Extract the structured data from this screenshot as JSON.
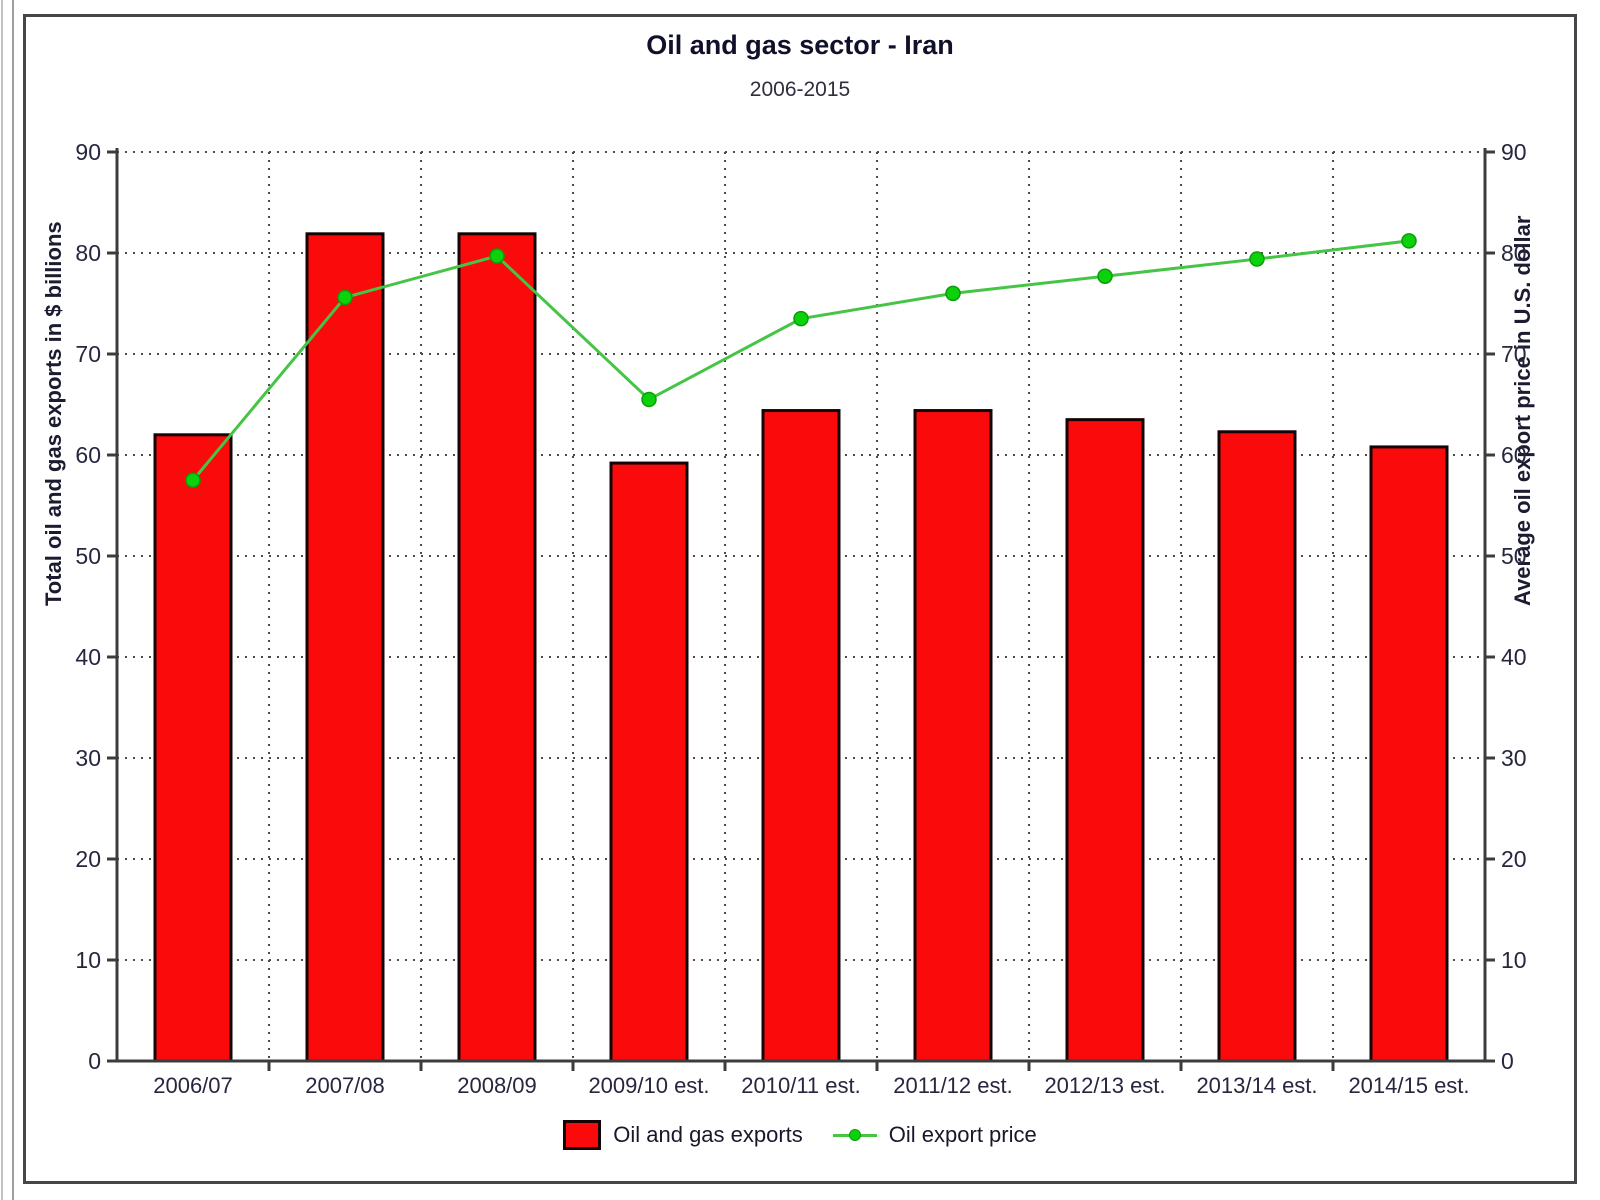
{
  "title": "Oil and gas sector - Iran",
  "subtitle": "2006-2015",
  "left_axis_label": "Total oil and gas exports in $ billions",
  "right_axis_label": "Average oil export price in U.S. dollar",
  "legend": {
    "bar_label": "Oil and gas exports",
    "line_label": "Oil export price"
  },
  "colors": {
    "bar_fill": "#fa0a0a",
    "bar_stroke": "#140404",
    "line": "#46c446",
    "marker_fill": "#0cd20c",
    "marker_stroke": "#0a9c0a",
    "grid": "#4b4b4b",
    "axis": "#3c3c3c",
    "tick_text": "#26263e"
  },
  "chart_data": {
    "type": "bar",
    "title": "Oil and gas sector - Iran",
    "subtitle": "2006-2015",
    "categories": [
      "2006/07",
      "2007/08",
      "2008/09",
      "2009/10 est.",
      "2010/11 est.",
      "2011/12 est.",
      "2012/13 est.",
      "2013/14 est.",
      "2014/15 est."
    ],
    "series": [
      {
        "name": "Oil and gas exports",
        "type": "bar",
        "axis": "left",
        "values": [
          62,
          81.9,
          81.9,
          59.2,
          64.4,
          64.4,
          63.5,
          62.3,
          60.8
        ]
      },
      {
        "name": "Oil export price",
        "type": "line",
        "axis": "right",
        "values": [
          57.5,
          75.6,
          79.7,
          65.5,
          73.5,
          76,
          77.7,
          79.4,
          81.2
        ]
      }
    ],
    "ylabel_left": "Total oil and gas exports in $ billions",
    "ylabel_right": "Average oil export price in U.S. dollar",
    "ylim": [
      0,
      90
    ],
    "yticks": [
      0,
      10,
      20,
      30,
      40,
      50,
      60,
      70,
      80,
      90
    ],
    "grid": "dotted horizontal and vertical",
    "legend_position": "bottom-center"
  }
}
